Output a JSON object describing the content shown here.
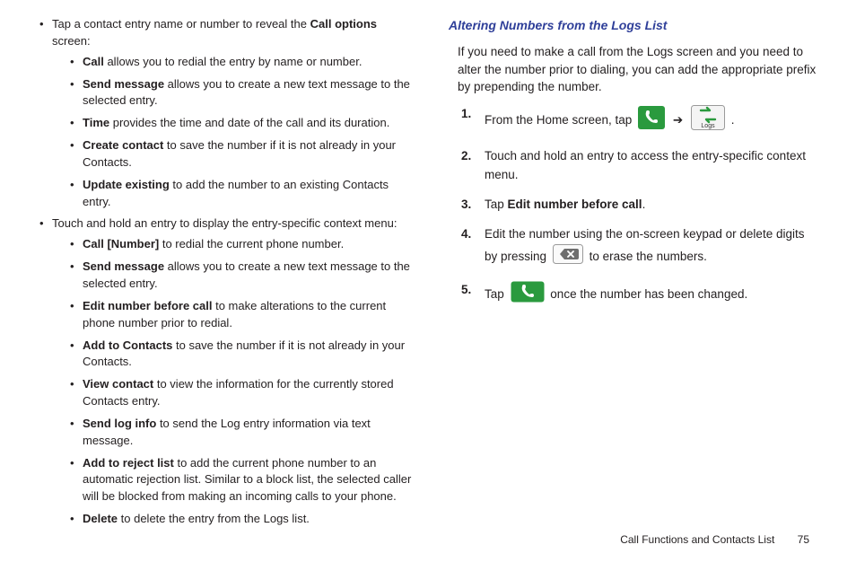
{
  "left": {
    "l1a_before": "Tap a contact entry name or number to reveal the ",
    "l1a_bold": "Call options",
    "l1a_after": " screen:",
    "sub_a": [
      {
        "b": "Call",
        "t": " allows you to redial the entry by name or number."
      },
      {
        "b": "Send message",
        "t": " allows you to create a new text message to the selected entry."
      },
      {
        "b": "Time",
        "t": " provides the time and date of the call and its duration."
      },
      {
        "b": "Create contact",
        "t": " to save the number if it is not already in your Contacts."
      },
      {
        "b": "Update existing",
        "t": " to add the number to an existing Contacts entry."
      }
    ],
    "l1b": "Touch and hold an entry to display the entry-specific context menu:",
    "sub_b": [
      {
        "b": "Call [Number]",
        "t": " to redial the current phone number."
      },
      {
        "b": "Send message",
        "t": " allows you to create a new text message to the selected entry."
      },
      {
        "b": "Edit number before call",
        "t": " to make alterations to the current phone number prior to redial."
      },
      {
        "b": "Add to Contacts",
        "t": " to save the number if it is not already in your Contacts."
      },
      {
        "b": "View contact",
        "t": " to view the information for the currently stored Contacts entry."
      },
      {
        "b": "Send log info",
        "t": " to send the Log entry information via text message."
      },
      {
        "b": "Add to reject list",
        "t": " to add the current phone number to an automatic rejection list. Similar to a block list, the selected caller will be blocked from making an incoming calls to your phone."
      },
      {
        "b": "Delete",
        "t": " to delete the entry from the Logs list."
      }
    ]
  },
  "right": {
    "heading": "Altering Numbers from the Logs List",
    "intro": "If you need to make a call from the Logs screen and you need to alter the number prior to dialing, you can add the appropriate prefix by prepending the number.",
    "steps": {
      "s1a": "From the Home screen, tap ",
      "s1b": ".",
      "s2": "Touch and hold an entry to access the entry-specific context menu.",
      "s3a": "Tap ",
      "s3b": "Edit number before call",
      "s3c": ".",
      "s4a": "Edit the number using the on-screen keypad or delete digits by pressing ",
      "s4b": " to erase the numbers.",
      "s5a": "Tap ",
      "s5b": " once the number has been changed."
    }
  },
  "footer": {
    "section": "Call Functions and Contacts List",
    "page": "75"
  },
  "icons": {
    "phone_bg": "#2a9a3e",
    "phone_fg": "#ffffff",
    "logs_bg": "#f0f0f0",
    "logs_border": "#9a9a9a",
    "logs_arrow": "#2a9a3e",
    "logs_label": "Logs",
    "bksp_bg": "#6e6e6e",
    "bksp_fg": "#ffffff",
    "arrow": "➔"
  }
}
